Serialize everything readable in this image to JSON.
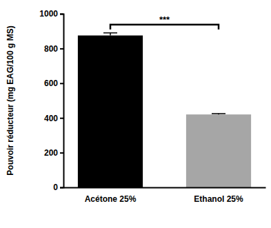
{
  "chart_data": {
    "type": "bar",
    "categories": [
      "Acétone 25%",
      "Ethanol 25%"
    ],
    "values": [
      875,
      420
    ],
    "errors": [
      15,
      5
    ],
    "colors": [
      "#000000",
      "#a6a6a6"
    ],
    "y_label": "Pouvoir réducteur (mg EAG/100 g MS)",
    "ylim": [
      0,
      1000
    ],
    "yticks": [
      0,
      200,
      400,
      600,
      800,
      1000
    ],
    "annotations": [
      {
        "text": "***"
      }
    ]
  }
}
